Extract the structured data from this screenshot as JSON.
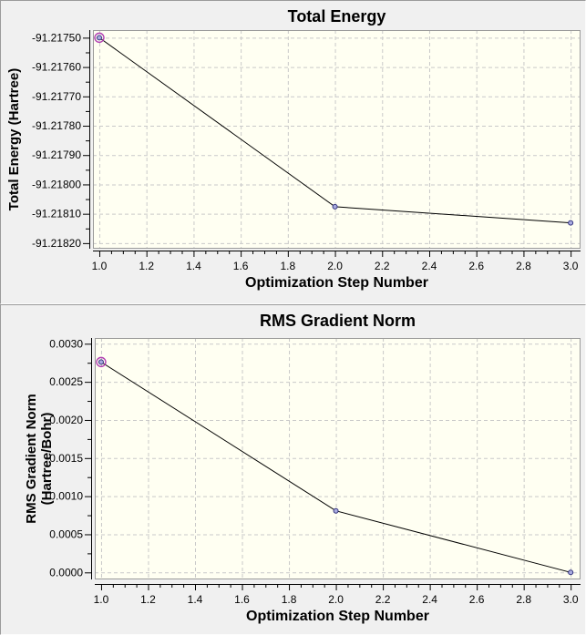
{
  "window": {
    "background": "#f0f0f0"
  },
  "colors": {
    "panel_bg": "#f0f0f0",
    "plot_bg": "#fffff2",
    "grid": "#c9c9c9",
    "frame": "#9a9a9a",
    "axis": "#000000",
    "line": "#000000",
    "marker_fill": "#a9abdf",
    "marker_stroke": "#33337f",
    "selection_ring": "#b23fb2",
    "text": "#000000"
  },
  "chart_data": [
    {
      "type": "line",
      "title": "Total Energy",
      "xlabel": "Optimization Step Number",
      "ylabel_lines": [
        "Total Energy (Hartree)"
      ],
      "x": [
        1.0,
        2.0,
        3.0
      ],
      "y": [
        -91.2175,
        -91.218076,
        -91.218131
      ],
      "xlim": [
        0.973,
        3.042
      ],
      "ylim": [
        -91.218219,
        -91.217474
      ],
      "xticks": [
        1.0,
        1.2,
        1.4,
        1.6,
        1.8,
        2.0,
        2.2,
        2.4,
        2.6,
        2.8,
        3.0
      ],
      "xtick_labels": [
        "1.0",
        "1.2",
        "1.4",
        "1.6",
        "1.8",
        "2.0",
        "2.2",
        "2.4",
        "2.6",
        "2.8",
        "3.0"
      ],
      "yticks": [
        -91.2175,
        -91.2176,
        -91.2177,
        -91.2178,
        -91.2179,
        -91.218,
        -91.2181,
        -91.2182
      ],
      "ytick_labels": [
        "-91.21750",
        "-91.21760",
        "-91.21770",
        "-91.21780",
        "-91.21790",
        "-91.21800",
        "-91.21810",
        "-91.21820"
      ],
      "minor_per_major_x": 4,
      "minor_per_major_y": 2,
      "grid": true,
      "legend": "none",
      "marker": "circle",
      "selected_point_index": 0
    },
    {
      "type": "line",
      "title": "RMS Gradient Norm",
      "xlabel": "Optimization Step Number",
      "ylabel_lines": [
        "RMS Gradient Norm",
        "(Hartree/Bohr)"
      ],
      "x": [
        1.0,
        2.0,
        3.0
      ],
      "y": [
        0.00276,
        0.000808,
        0.0
      ],
      "xlim": [
        0.973,
        3.042
      ],
      "ylim": [
        -9.2e-05,
        0.0030753
      ],
      "xticks": [
        1.0,
        1.2,
        1.4,
        1.6,
        1.8,
        2.0,
        2.2,
        2.4,
        2.6,
        2.8,
        3.0
      ],
      "xtick_labels": [
        "1.0",
        "1.2",
        "1.4",
        "1.6",
        "1.8",
        "2.0",
        "2.2",
        "2.4",
        "2.6",
        "2.8",
        "3.0"
      ],
      "yticks": [
        0.003,
        0.0025,
        0.002,
        0.0015,
        0.001,
        0.0005,
        0.0
      ],
      "ytick_labels": [
        "0.0030",
        "0.0025",
        "0.0020",
        "0.0015",
        "0.0010",
        "0.0005",
        "0.0000"
      ],
      "minor_per_major_x": 4,
      "minor_per_major_y": 2,
      "grid": true,
      "legend": "none",
      "marker": "circle",
      "selected_point_index": 0
    }
  ]
}
